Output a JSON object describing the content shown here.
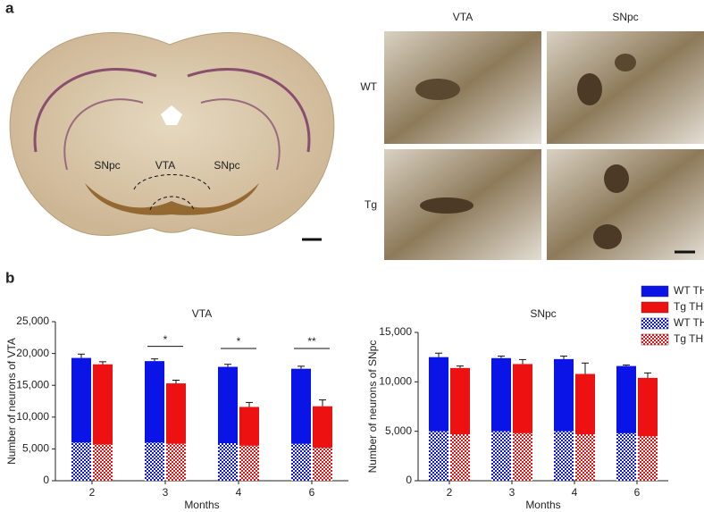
{
  "panels": {
    "a": "a",
    "b": "b"
  },
  "micrograph": {
    "columns": [
      "VTA",
      "SNpc"
    ],
    "rows": [
      "WT",
      "Tg"
    ]
  },
  "brain": {
    "labels": [
      "SNpc",
      "VTA",
      "SNpc"
    ]
  },
  "chart_data": [
    {
      "type": "bar",
      "stacked": true,
      "title": "VTA",
      "y_label": "Number of neurons of VTA",
      "x_label": "Months",
      "categories": [
        "2",
        "3",
        "4",
        "6"
      ],
      "ylim": [
        0,
        25000
      ],
      "yticks": [
        0,
        {
          "value": 5000,
          "label": "5,000"
        },
        {
          "value": 10000,
          "label": "10,000"
        },
        {
          "value": 15000,
          "label": "15,000"
        },
        {
          "value": 20000,
          "label": "20,000"
        },
        {
          "value": 25000,
          "label": "25,000"
        }
      ],
      "series": [
        {
          "name": "WT TH⁺",
          "color": "#0a14e6",
          "stack": "WT",
          "values": [
            13300,
            12800,
            12000,
            11800
          ],
          "errors": [
            600,
            350,
            400,
            400
          ]
        },
        {
          "name": "Tg TH⁺",
          "color": "#ee1111",
          "stack": "Tg",
          "values": [
            12600,
            9500,
            6100,
            6500
          ],
          "errors": [
            400,
            500,
            700,
            1000
          ]
        },
        {
          "name": "WT TH⁻",
          "color": "#0a14e6",
          "pattern": "checker",
          "stack": "WT",
          "values": [
            6000,
            6000,
            5900,
            5800
          ],
          "errors": [
            150,
            150,
            150,
            150
          ]
        },
        {
          "name": "Tg TH⁻",
          "color": "#ee1111",
          "pattern": "checker",
          "stack": "Tg",
          "values": [
            5700,
            5800,
            5500,
            5200
          ],
          "errors": [
            150,
            200,
            200,
            300
          ]
        }
      ],
      "significance": [
        null,
        "*",
        "*",
        "**"
      ],
      "legend": false
    },
    {
      "type": "bar",
      "stacked": true,
      "title": "SNpc",
      "y_label": "Number of neurons of SNpc",
      "x_label": "Months",
      "categories": [
        "2",
        "3",
        "4",
        "6"
      ],
      "ylim": [
        0,
        15000
      ],
      "yticks": [
        0,
        {
          "value": 5000,
          "label": "5,000"
        },
        {
          "value": 10000,
          "label": "10,000"
        },
        {
          "value": 15000,
          "label": "15,000"
        }
      ],
      "series": [
        {
          "name": "WT TH⁺",
          "color": "#0a14e6",
          "stack": "WT",
          "values": [
            7500,
            7400,
            7300,
            6800
          ],
          "errors": [
            400,
            200,
            300,
            100
          ]
        },
        {
          "name": "Tg TH⁺",
          "color": "#ee1111",
          "stack": "Tg",
          "values": [
            6700,
            7000,
            6100,
            5900
          ],
          "errors": [
            200,
            450,
            1100,
            500
          ]
        },
        {
          "name": "WT TH⁻",
          "color": "#0a14e6",
          "pattern": "checker",
          "stack": "WT",
          "values": [
            5000,
            5000,
            5000,
            4800
          ],
          "errors": [
            150,
            150,
            150,
            400
          ]
        },
        {
          "name": "Tg TH⁻",
          "color": "#ee1111",
          "pattern": "checker",
          "stack": "Tg",
          "values": [
            4700,
            4800,
            4700,
            4500
          ],
          "errors": [
            350,
            350,
            150,
            200
          ]
        }
      ],
      "legend": "upper right"
    }
  ]
}
